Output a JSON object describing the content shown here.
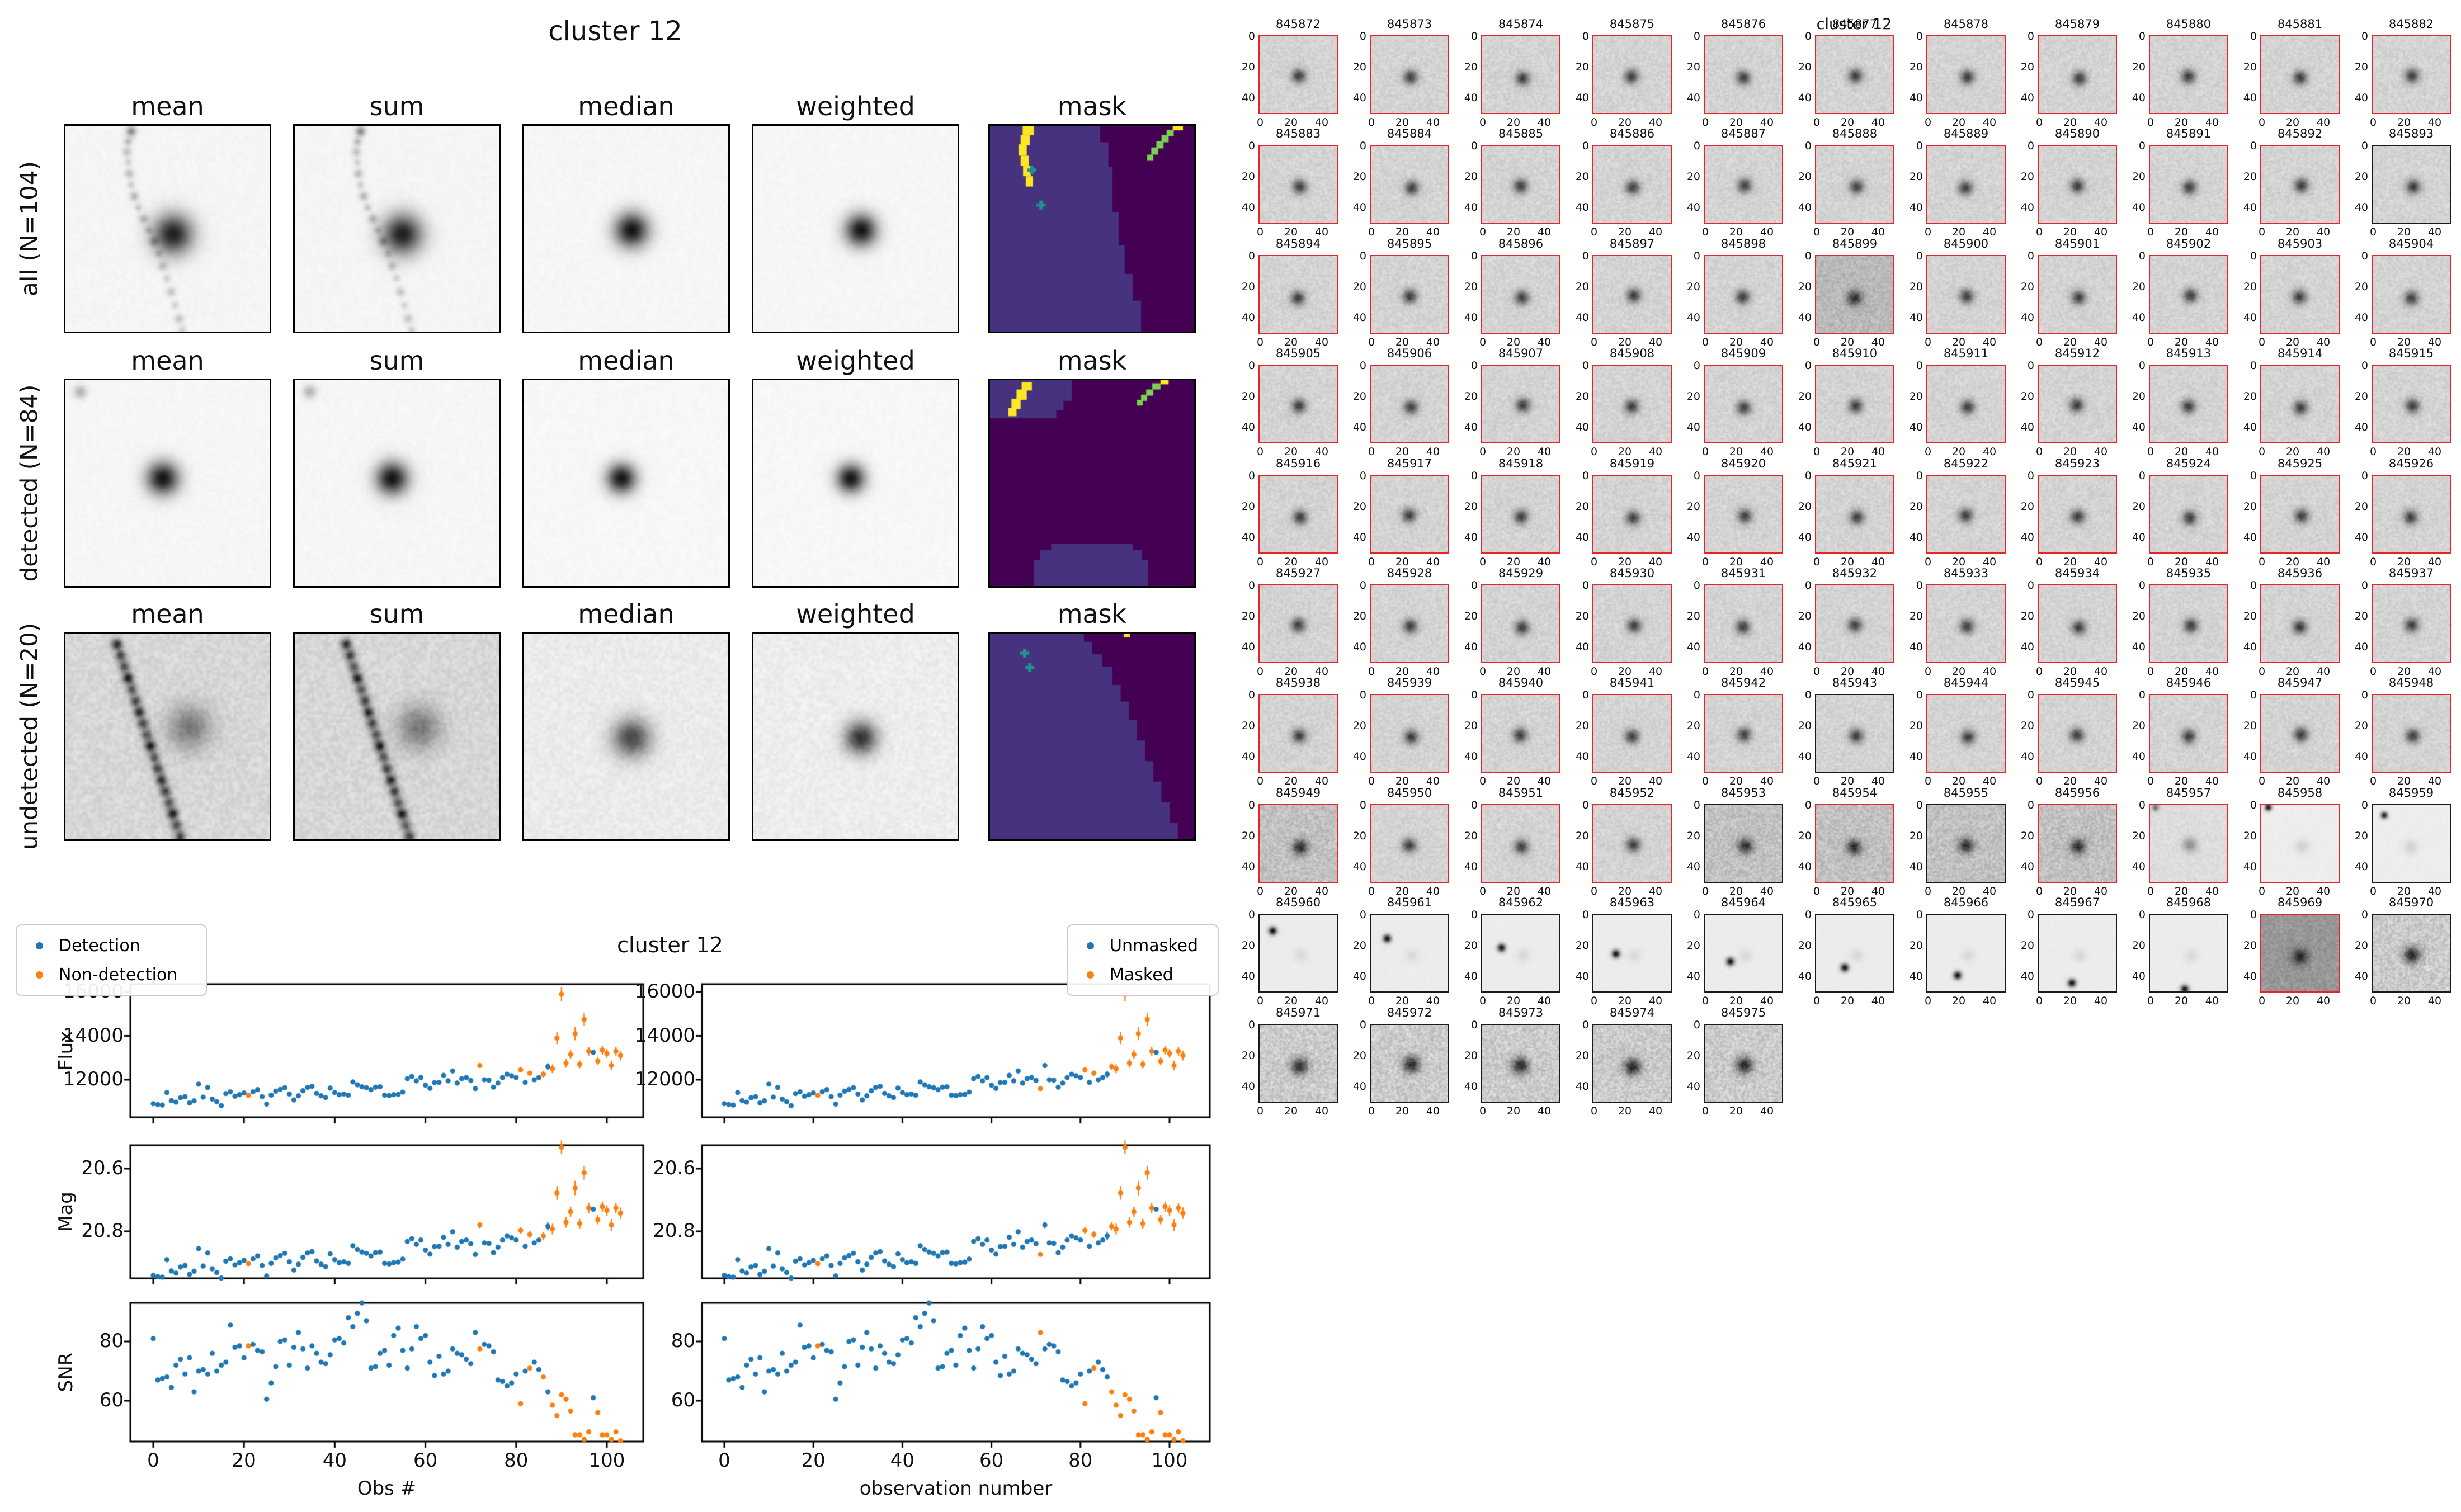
{
  "left_figure": {
    "title": "cluster 12",
    "column_titles": [
      "mean",
      "sum",
      "median",
      "weighted",
      "mask"
    ],
    "row_labels": [
      "all (N=104)",
      "detected (N=84)",
      "undetected (N=20)"
    ],
    "mask_colors": {
      "background": "#46327e",
      "masked_region": "#440154",
      "streak_yellow": "#fde725",
      "streak_green": "#7ad151",
      "cross_teal": "#21918c"
    }
  },
  "scatter_figure": {
    "title": "cluster 12",
    "legend_detection": {
      "items": [
        {
          "label": "Detection",
          "color": "#1f77b4"
        },
        {
          "label": "Non-detection",
          "color": "#ff7f0e"
        }
      ]
    },
    "legend_mask": {
      "items": [
        {
          "label": "Unmasked",
          "color": "#1f77b4"
        },
        {
          "label": "Masked",
          "color": "#ff7f0e"
        }
      ]
    },
    "ylabels": [
      "Flux",
      "Mag",
      "SNR"
    ],
    "xlabel_left": "Obs #",
    "xlabel_right": "observation number",
    "xticks": [
      0,
      20,
      40,
      60,
      80,
      100
    ],
    "flux_yticks": [
      16000,
      14000,
      12000
    ],
    "mag_yticks": [
      20.6,
      20.8
    ],
    "snr_yticks": [
      80,
      60
    ]
  },
  "chart_data": {
    "type": "scatter",
    "obs_note": "x value = observation index 0..103",
    "title": "cluster 12",
    "xlabel_left": "Obs #",
    "xlabel_right": "observation number",
    "xlim": [
      -5,
      108
    ],
    "flux_ylim": [
      10200,
      16360
    ],
    "mag_ylim_inverted": [
      20.52,
      20.96
    ],
    "snr_ylim": [
      45.5,
      91.8
    ],
    "mag_zeropoint": 31.035,
    "flux": [
      10910,
      10870,
      10850,
      11420,
      11050,
      10980,
      11180,
      11230,
      10940,
      11040,
      11800,
      11210,
      11650,
      11120,
      11000,
      10820,
      11370,
      11450,
      11250,
      11320,
      11400,
      11290,
      11450,
      11550,
      11230,
      10890,
      11300,
      11480,
      11560,
      11640,
      11350,
      11080,
      11270,
      11500,
      11650,
      11700,
      11380,
      11270,
      11190,
      11620,
      11420,
      11320,
      11350,
      11300,
      11900,
      11770,
      11680,
      11640,
      11550,
      11660,
      11680,
      11300,
      11280,
      11320,
      11340,
      11440,
      12050,
      12150,
      11950,
      12100,
      11750,
      11610,
      11870,
      11880,
      12200,
      11950,
      12400,
      11850,
      12050,
      12100,
      11970,
      11600,
      12650,
      12000,
      11980,
      11660,
      11850,
      12100,
      12250,
      12180,
      12100,
      12450,
      11880,
      12300,
      12000,
      12100,
      12250,
      12600,
      12500,
      13900,
      15900,
      12750,
      13150,
      14100,
      12700,
      14750,
      13300,
      13250,
      12850,
      13350,
      13200,
      12650,
      13300,
      13100
    ],
    "snr": [
      81,
      67,
      67.5,
      68,
      64.5,
      72,
      74,
      69,
      74.5,
      63,
      70,
      70.5,
      69,
      76,
      70,
      72,
      73,
      85.5,
      78,
      78.5,
      74.5,
      78.5,
      79,
      77,
      76.5,
      60.5,
      66,
      71.5,
      80,
      80.5,
      72,
      78,
      83,
      77.5,
      71,
      78.5,
      76,
      73,
      72.5,
      75.5,
      80.5,
      81,
      79.5,
      88,
      85,
      89.5,
      93,
      87,
      71,
      71.5,
      76,
      77,
      72,
      82,
      84.5,
      77,
      71,
      77.5,
      85,
      81,
      82,
      73,
      68.5,
      75,
      69,
      70,
      77.5,
      76,
      75.5,
      74,
      72.5,
      83,
      77.5,
      79,
      78.5,
      76.5,
      67,
      66.5,
      65,
      66,
      69,
      59,
      70,
      71,
      73,
      70.5,
      68,
      63,
      58.5,
      55,
      62,
      60.5,
      56.5,
      48.5,
      48.5,
      47,
      49.5,
      61,
      56,
      48.5,
      48.5,
      47,
      49.5,
      46.5
    ],
    "flux_err": {
      "default": 80,
      "overrides": {
        "72": 120,
        "81": 120,
        "83": 120,
        "86": 150,
        "87": 150,
        "88": 200,
        "89": 280,
        "90": 320,
        "91": 200,
        "92": 200,
        "93": 300,
        "94": 180,
        "95": 300,
        "96": 200,
        "98": 180,
        "99": 200,
        "100": 200,
        "101": 220,
        "102": 200,
        "103": 220
      }
    },
    "non_detection_obs": [
      21,
      72,
      81,
      83,
      86,
      88,
      89,
      90,
      91,
      92,
      93,
      94,
      95,
      96,
      98,
      99,
      100,
      101,
      102,
      103
    ],
    "masked_obs": [
      21,
      71,
      81,
      83,
      87,
      88,
      89,
      90,
      91,
      92,
      93,
      94,
      95,
      96,
      98,
      99,
      100,
      101,
      102,
      103
    ],
    "point_colors": {
      "detection": "#1f77b4",
      "non_detection": "#ff7f0e"
    }
  },
  "cutout_grid": {
    "suptitle": "cluster 12",
    "columns": 11,
    "xticks": [
      0,
      20,
      40
    ],
    "yticks": [
      0,
      20,
      40
    ],
    "border_red": "#e8242b",
    "border_black": "#1a1a1a",
    "ids": [
      845872,
      845873,
      845874,
      845875,
      845876,
      845877,
      845878,
      845879,
      845880,
      845881,
      845882,
      845883,
      845884,
      845885,
      845886,
      845887,
      845888,
      845889,
      845890,
      845891,
      845892,
      845893,
      845894,
      845895,
      845896,
      845897,
      845898,
      845899,
      845900,
      845901,
      845902,
      845903,
      845904,
      845905,
      845906,
      845907,
      845908,
      845909,
      845910,
      845911,
      845912,
      845913,
      845914,
      845915,
      845916,
      845917,
      845918,
      845919,
      845920,
      845921,
      845922,
      845923,
      845924,
      845925,
      845926,
      845927,
      845928,
      845929,
      845930,
      845931,
      845932,
      845933,
      845934,
      845935,
      845936,
      845937,
      845938,
      845939,
      845940,
      845941,
      845942,
      845943,
      845944,
      845945,
      845946,
      845947,
      845948,
      845949,
      845950,
      845951,
      845952,
      845953,
      845954,
      845955,
      845956,
      845957,
      845958,
      845959,
      845960,
      845961,
      845962,
      845963,
      845964,
      845965,
      845966,
      845967,
      845968,
      845969,
      845970,
      845971,
      845972,
      845973,
      845974,
      845975
    ],
    "black_border_ids": [
      845893,
      845943,
      845953,
      845955,
      845959,
      845960,
      845961,
      845962,
      845963,
      845964,
      845965,
      845966,
      845967,
      845968,
      845970,
      845971,
      845972,
      845973,
      845974,
      845975
    ],
    "special_styles": {
      "845899": "dark",
      "845949": "grainy",
      "845953": "grainy",
      "845954": "grainy",
      "845955": "grainy",
      "845956": "grainy",
      "845957": "faint",
      "845958": "ghost",
      "845959": "ghost",
      "845960": "track",
      "845961": "track",
      "845962": "track",
      "845963": "track",
      "845964": "track",
      "845965": "track",
      "845966": "track",
      "845967": "track",
      "845968": "track",
      "845969": "darkest",
      "845970": "grainy2",
      "845971": "grainy2",
      "845972": "grainy2",
      "845973": "grainy2",
      "845974": "grainy2",
      "845975": "grainy2"
    },
    "track_spots": {
      "845960": [
        8,
        10
      ],
      "845961": [
        10,
        15
      ],
      "845962": [
        12,
        21
      ],
      "845963": [
        14,
        25
      ],
      "845964": [
        16,
        30
      ],
      "845965": [
        18,
        34
      ],
      "845966": [
        19,
        39
      ],
      "845967": [
        21,
        44
      ],
      "845968": [
        22,
        48
      ]
    },
    "ghost_spots": {
      "845957": [
        3,
        1
      ],
      "845958": [
        4,
        1
      ],
      "845959": [
        7,
        6
      ]
    }
  }
}
